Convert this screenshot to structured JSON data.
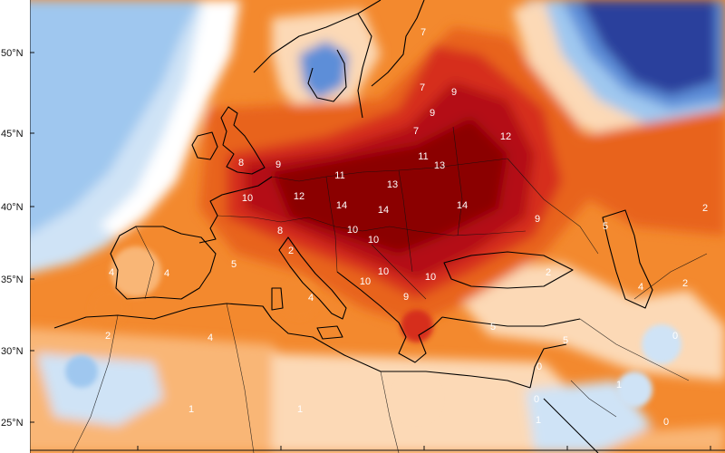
{
  "map": {
    "lat_axis_labels": [
      "50°N",
      "45°N",
      "40°N",
      "35°N",
      "30°N",
      "25°N"
    ],
    "anomaly_labels": [
      "7",
      "7",
      "9",
      "9",
      "7",
      "12",
      "11",
      "13",
      "11",
      "8",
      "9",
      "10",
      "12",
      "13",
      "14",
      "14",
      "14",
      "10",
      "10",
      "9",
      "8",
      "2",
      "10",
      "10",
      "10",
      "9",
      "4",
      "4",
      "5",
      "4",
      "2",
      "4",
      "5",
      "5",
      "2",
      "4",
      "2",
      "0",
      "0",
      "1",
      "0",
      "1",
      "1",
      "1",
      "5",
      "2",
      "0"
    ],
    "colors": {
      "extreme": "#8b0000",
      "very_high": "#b40f12",
      "high": "#d62f1e",
      "elevated": "#e8631a",
      "warm": "#f3892e",
      "mild": "#f9b676",
      "slight": "#fcd9b6",
      "neutral": "#ffffff",
      "cool": "#cfe3f6",
      "cooler": "#9fc7ef",
      "cold": "#5d8ed8",
      "very_cold": "#2c3f9c",
      "extreme_cold": "#8e6cc4",
      "coast": "#000000"
    }
  }
}
